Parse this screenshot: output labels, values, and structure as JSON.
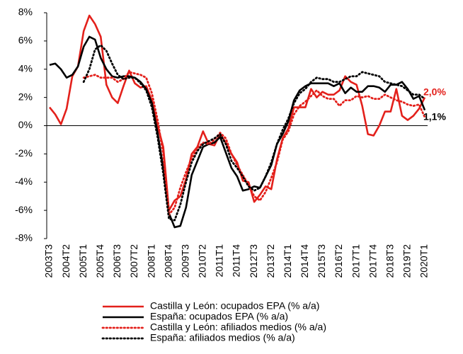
{
  "chart_data": {
    "type": "line",
    "categories": [
      "2003T3",
      null,
      null,
      "2004T2",
      null,
      null,
      "2005T1",
      null,
      null,
      "2005T4",
      null,
      null,
      "2006T3",
      null,
      null,
      "2007T2",
      null,
      null,
      "2008T1",
      null,
      null,
      "2008T4",
      null,
      null,
      "2009T3",
      null,
      null,
      "2010T2",
      null,
      null,
      "2011T1",
      null,
      null,
      "2011T4",
      null,
      null,
      "2012T3",
      null,
      null,
      "2013T2",
      null,
      null,
      "2014T1",
      null,
      null,
      "2014T4",
      null,
      null,
      "2015T3",
      null,
      null,
      "2016T2",
      null,
      null,
      "2017T1",
      null,
      null,
      "2017T4",
      null,
      null,
      "2018T3",
      null,
      null,
      "2019T2",
      null,
      null,
      "2020T1"
    ],
    "series": [
      {
        "name": "Castilla y León: ocupados EPA (% a/a)",
        "color": "#e3201b",
        "style": "solid",
        "values": [
          1.3,
          0.8,
          0.1,
          1.2,
          3.5,
          4.2,
          6.7,
          7.8,
          7.2,
          6.3,
          2.9,
          2.0,
          1.6,
          2.8,
          3.9,
          3.0,
          2.7,
          2.8,
          1.8,
          0.0,
          -1.5,
          -6.0,
          -5.3,
          -5.0,
          -3.8,
          -2.0,
          -1.5,
          -0.4,
          -1.3,
          -1.4,
          -0.6,
          -1.2,
          -2.0,
          -2.6,
          -3.9,
          -4.0,
          -5.4,
          -4.9,
          -4.3,
          -4.5,
          -2.4,
          -0.9,
          -0.2,
          1.3,
          1.3,
          1.3,
          2.6,
          2.0,
          2.4,
          2.2,
          2.2,
          2.5,
          3.5,
          3.1,
          2.9,
          1.4,
          -0.6,
          -0.7,
          0.0,
          1.0,
          1.0,
          2.6,
          0.7,
          0.4,
          0.7,
          1.2,
          2.0
        ]
      },
      {
        "name": "España: ocupados EPA (% a/a)",
        "color": "#000000",
        "style": "solid",
        "values": [
          4.3,
          4.4,
          4.0,
          3.4,
          3.6,
          4.2,
          5.6,
          6.3,
          6.1,
          4.8,
          4.0,
          3.5,
          3.4,
          3.5,
          3.5,
          3.4,
          3.1,
          2.6,
          1.6,
          -0.5,
          -3.0,
          -6.2,
          -7.2,
          -7.1,
          -5.8,
          -3.5,
          -2.5,
          -1.5,
          -1.3,
          -1.2,
          -0.8,
          -1.9,
          -3.0,
          -3.6,
          -4.6,
          -4.5,
          -4.3,
          -4.4,
          -3.6,
          -2.8,
          -1.3,
          -0.6,
          0.3,
          1.8,
          2.5,
          2.8,
          3.0,
          3.0,
          3.0,
          3.0,
          2.8,
          3.0,
          2.3,
          2.7,
          2.4,
          2.4,
          2.8,
          2.8,
          2.7,
          2.4,
          2.9,
          2.9,
          3.1,
          2.6,
          1.9,
          2.1,
          1.1
        ]
      },
      {
        "name": "Castilla y León: afiliados medios (% a/a)",
        "color": "#e3201b",
        "style": "dotted",
        "values": [
          null,
          null,
          null,
          null,
          null,
          null,
          3.4,
          3.5,
          3.6,
          3.4,
          3.4,
          3.4,
          3.1,
          3.3,
          3.8,
          3.7,
          3.6,
          3.4,
          2.3,
          0.4,
          -2.0,
          -6.3,
          -5.8,
          -4.4,
          -3.3,
          -2.3,
          -1.6,
          -1.2,
          -1.3,
          -1.0,
          -0.5,
          -0.9,
          -2.0,
          -2.8,
          -3.5,
          -4.2,
          -5.0,
          -5.3,
          -4.7,
          -3.7,
          -2.6,
          -1.0,
          -0.4,
          0.8,
          1.4,
          1.7,
          2.1,
          2.5,
          2.1,
          1.9,
          1.9,
          1.4,
          1.8,
          1.8,
          2.1,
          2.0,
          2.1,
          1.9,
          1.9,
          2.2,
          2.0,
          1.8,
          1.7,
          1.5,
          1.4,
          1.5,
          0.6
        ]
      },
      {
        "name": "España: afiliados medios (% a/a)",
        "color": "#000000",
        "style": "dotted",
        "values": [
          null,
          null,
          null,
          null,
          null,
          null,
          3.1,
          4.0,
          5.4,
          5.7,
          5.3,
          4.4,
          3.6,
          3.3,
          3.4,
          3.4,
          3.0,
          2.5,
          1.3,
          -0.8,
          -3.4,
          -6.6,
          -6.7,
          -5.6,
          -4.0,
          -2.6,
          -1.8,
          -1.3,
          -1.1,
          -0.9,
          -0.6,
          -1.3,
          -2.5,
          -3.0,
          -3.6,
          -4.3,
          -4.6,
          -4.4,
          -3.6,
          -2.6,
          -1.3,
          -0.3,
          0.5,
          1.6,
          2.3,
          2.6,
          3.1,
          3.4,
          3.3,
          3.3,
          3.1,
          3.1,
          3.3,
          3.5,
          3.5,
          3.8,
          3.7,
          3.6,
          3.5,
          3.1,
          3.0,
          2.9,
          2.8,
          2.5,
          2.2,
          2.2,
          1.9
        ]
      }
    ],
    "annotations": [
      "2,0%",
      "1,1%"
    ],
    "ylim": [
      -8,
      8
    ],
    "yticks": [
      {
        "value": -8,
        "label": "-8%"
      },
      {
        "value": -6,
        "label": "-6%"
      },
      {
        "value": -4,
        "label": "-4%"
      },
      {
        "value": -2,
        "label": "-2%"
      },
      {
        "value": 0,
        "label": "0%"
      },
      {
        "value": 2,
        "label": "2%"
      },
      {
        "value": 4,
        "label": "4%"
      },
      {
        "value": 6,
        "label": "6%"
      },
      {
        "value": 8,
        "label": "8%"
      }
    ],
    "grid": false,
    "legend": "bottom"
  }
}
